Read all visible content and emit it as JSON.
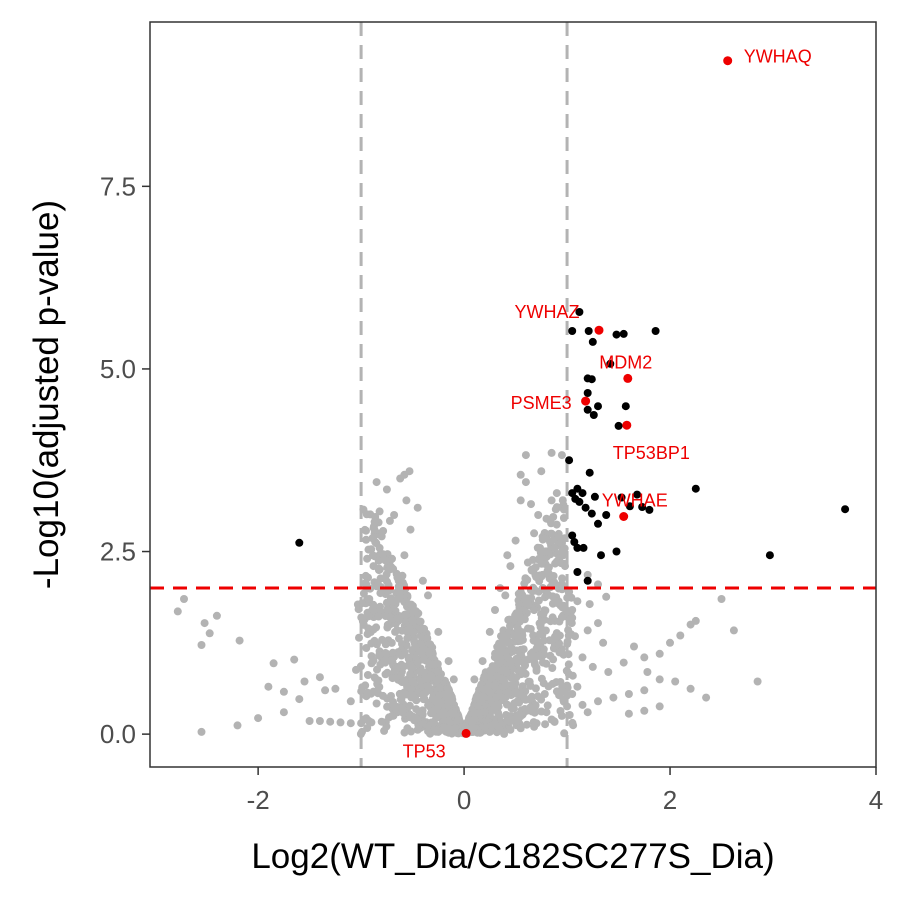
{
  "chart_data": {
    "type": "scatter",
    "title": "",
    "xlabel": "Log2(WT_Dia/C182SC277S_Dia)",
    "ylabel": "-Log10(adjusted p-value)",
    "xlim": [
      -3.05,
      4.0
    ],
    "ylim": [
      -0.45,
      9.75
    ],
    "x_ticks": [
      -2,
      0,
      2,
      4
    ],
    "y_ticks": [
      0.0,
      2.5,
      5.0,
      7.5
    ],
    "x_tick_labels": [
      "-2",
      "0",
      "2",
      "4"
    ],
    "y_tick_labels": [
      "0.0",
      "2.5",
      "5.0",
      "7.5"
    ],
    "grid": false,
    "legend": "none",
    "colors": {
      "not_significant": "#b3b3b3",
      "significant": "#000000",
      "highlighted": "#ee0000",
      "fold_change_threshold": "#b3b3b3",
      "pvalue_threshold": "#ee0000"
    },
    "thresholds": {
      "log2fc": [
        -1,
        1
      ],
      "neg_log10_padj": 2
    },
    "background_points": [
      [
        -2.78,
        1.68
      ],
      [
        -2.72,
        1.85
      ],
      [
        -2.55,
        1.22
      ],
      [
        -2.52,
        1.52
      ],
      [
        -2.47,
        1.38
      ],
      [
        -2.4,
        1.62
      ],
      [
        -2.18,
        1.28
      ],
      [
        -1.85,
        0.97
      ],
      [
        -1.65,
        1.02
      ],
      [
        -1.9,
        0.65
      ],
      [
        -1.75,
        0.58
      ],
      [
        -1.6,
        0.48
      ],
      [
        -1.55,
        0.72
      ],
      [
        -1.4,
        0.78
      ],
      [
        -1.35,
        0.6
      ],
      [
        -1.25,
        0.62
      ],
      [
        -1.1,
        0.45
      ],
      [
        -1.05,
        0.88
      ],
      [
        -0.95,
        0.52
      ],
      [
        -0.85,
        0.42
      ],
      [
        -1.5,
        0.18
      ],
      [
        -1.4,
        0.18
      ],
      [
        -1.3,
        0.17
      ],
      [
        -1.2,
        0.16
      ],
      [
        -1.1,
        0.15
      ],
      [
        -1.0,
        0.15
      ],
      [
        -0.9,
        0.16
      ],
      [
        -0.8,
        0.17
      ],
      [
        -2.55,
        0.03
      ],
      [
        -1.02,
        1.32
      ],
      [
        -0.95,
        2.05
      ],
      [
        -0.88,
        2.3
      ],
      [
        -0.82,
        2.55
      ],
      [
        -0.75,
        3.35
      ],
      [
        -0.72,
        2.92
      ],
      [
        -0.68,
        3.0
      ],
      [
        -0.62,
        3.5
      ],
      [
        -0.58,
        3.55
      ],
      [
        -0.53,
        3.6
      ],
      [
        -0.56,
        3.2
      ],
      [
        -0.52,
        2.8
      ],
      [
        -0.82,
        3.05
      ],
      [
        -0.58,
        2.45
      ],
      [
        -0.92,
        1.85
      ],
      [
        -0.85,
        3.45
      ],
      [
        -0.7,
        2.4
      ],
      [
        -0.75,
        1.8
      ],
      [
        -0.67,
        1.4
      ],
      [
        -0.45,
        3.1
      ],
      [
        -2.2,
        0.12
      ],
      [
        -2.0,
        0.22
      ],
      [
        -1.75,
        0.3
      ],
      [
        -0.6,
        0.35
      ],
      [
        -0.7,
        0.25
      ],
      [
        0.55,
        3.55
      ],
      [
        0.6,
        3.82
      ],
      [
        0.6,
        3.45
      ],
      [
        0.55,
        3.2
      ],
      [
        0.65,
        3.15
      ],
      [
        0.72,
        3.0
      ],
      [
        0.8,
        2.95
      ],
      [
        0.85,
        3.2
      ],
      [
        0.9,
        3.3
      ],
      [
        0.75,
        3.6
      ],
      [
        0.85,
        3.85
      ],
      [
        0.95,
        3.82
      ],
      [
        0.5,
        2.65
      ],
      [
        0.68,
        2.75
      ],
      [
        0.88,
        2.55
      ],
      [
        0.95,
        2.05
      ],
      [
        0.98,
        2.3
      ],
      [
        0.92,
        2.7
      ],
      [
        0.7,
        2.15
      ],
      [
        0.8,
        2.2
      ],
      [
        0.78,
        2.5
      ],
      [
        0.62,
        2.35
      ],
      [
        0.45,
        2.3
      ],
      [
        0.42,
        2.45
      ],
      [
        1.02,
        1.95
      ],
      [
        1.05,
        1.7
      ],
      [
        1.1,
        1.82
      ],
      [
        1.22,
        1.78
      ],
      [
        1.3,
        1.52
      ],
      [
        1.35,
        1.25
      ],
      [
        1.2,
        1.42
      ],
      [
        1.15,
        1.05
      ],
      [
        1.25,
        0.92
      ],
      [
        1.4,
        0.85
      ],
      [
        1.55,
        0.98
      ],
      [
        1.65,
        1.2
      ],
      [
        1.75,
        1.05
      ],
      [
        1.9,
        1.1
      ],
      [
        2.0,
        1.25
      ],
      [
        2.1,
        1.35
      ],
      [
        2.2,
        1.5
      ],
      [
        2.25,
        1.55
      ],
      [
        2.5,
        1.85
      ],
      [
        2.62,
        1.42
      ],
      [
        2.85,
        0.72
      ],
      [
        2.35,
        0.5
      ],
      [
        2.2,
        0.62
      ],
      [
        2.05,
        0.72
      ],
      [
        1.9,
        0.75
      ],
      [
        1.75,
        0.6
      ],
      [
        1.6,
        0.55
      ],
      [
        1.45,
        0.5
      ],
      [
        1.3,
        0.45
      ],
      [
        1.15,
        0.4
      ],
      [
        1.0,
        0.38
      ],
      [
        1.05,
        0.55
      ],
      [
        1.1,
        0.65
      ],
      [
        1.6,
        0.28
      ],
      [
        1.75,
        0.32
      ],
      [
        1.9,
        0.38
      ],
      [
        0.8,
        0.3
      ],
      [
        0.85,
        0.2
      ],
      [
        0.95,
        0.25
      ],
      [
        1.2,
        0.3
      ],
      [
        0.65,
        1.1
      ],
      [
        0.5,
        1.35
      ],
      [
        1.3,
        2.05
      ],
      [
        1.2,
        2.18
      ],
      [
        1.38,
        1.88
      ],
      [
        1.78,
        0.85
      ],
      [
        0.95,
        1.6
      ],
      [
        -0.55,
        0.08
      ],
      [
        -0.45,
        0.06
      ],
      [
        -0.35,
        0.04
      ],
      [
        -0.25,
        0.03
      ],
      [
        -0.15,
        0.02
      ],
      [
        0.15,
        0.02
      ],
      [
        0.25,
        0.03
      ],
      [
        0.35,
        0.05
      ],
      [
        0.45,
        0.06
      ],
      [
        0.55,
        0.08
      ],
      [
        0.68,
        0.1
      ],
      [
        -0.3,
        0.15
      ],
      [
        0.3,
        0.15
      ],
      [
        -0.2,
        0.3
      ],
      [
        0.2,
        0.3
      ],
      [
        -0.12,
        0.5
      ],
      [
        0.12,
        0.5
      ],
      [
        -0.1,
        0.75
      ],
      [
        0.1,
        0.75
      ],
      [
        -0.15,
        1.0
      ],
      [
        0.18,
        1.0
      ],
      [
        -0.25,
        1.4
      ],
      [
        0.25,
        1.4
      ],
      [
        0.3,
        1.7
      ],
      [
        0.35,
        2.0
      ],
      [
        0.4,
        1.9
      ],
      [
        -0.35,
        1.9
      ],
      [
        -0.4,
        2.1
      ]
    ],
    "significant_points": [
      [
        -1.6,
        2.62
      ],
      [
        1.12,
        5.78
      ],
      [
        1.05,
        5.52
      ],
      [
        1.21,
        5.52
      ],
      [
        1.25,
        5.37
      ],
      [
        1.48,
        5.47
      ],
      [
        1.55,
        5.48
      ],
      [
        1.86,
        5.52
      ],
      [
        1.42,
        5.07
      ],
      [
        1.2,
        4.87
      ],
      [
        1.24,
        4.86
      ],
      [
        1.2,
        4.67
      ],
      [
        1.2,
        4.44
      ],
      [
        1.26,
        4.37
      ],
      [
        1.3,
        4.49
      ],
      [
        1.5,
        4.22
      ],
      [
        1.57,
        4.49
      ],
      [
        1.02,
        3.75
      ],
      [
        1.05,
        3.3
      ],
      [
        1.08,
        3.22
      ],
      [
        1.1,
        3.36
      ],
      [
        1.12,
        3.18
      ],
      [
        1.15,
        3.3
      ],
      [
        1.18,
        3.1
      ],
      [
        1.22,
        3.58
      ],
      [
        1.27,
        3.25
      ],
      [
        1.24,
        3.02
      ],
      [
        1.3,
        2.88
      ],
      [
        1.38,
        3.0
      ],
      [
        1.53,
        3.24
      ],
      [
        1.61,
        3.12
      ],
      [
        1.68,
        3.28
      ],
      [
        1.73,
        3.11
      ],
      [
        1.8,
        3.07
      ],
      [
        2.25,
        3.36
      ],
      [
        1.05,
        2.72
      ],
      [
        1.07,
        2.63
      ],
      [
        1.1,
        2.55
      ],
      [
        1.16,
        2.55
      ],
      [
        1.33,
        2.45
      ],
      [
        1.48,
        2.5
      ],
      [
        1.1,
        2.22
      ],
      [
        1.2,
        2.1
      ],
      [
        3.7,
        3.08
      ],
      [
        2.97,
        2.45
      ]
    ],
    "highlighted_genes": [
      {
        "label": "YWHAQ",
        "x": 2.56,
        "y": 9.22
      },
      {
        "label": "YWHAZ",
        "x": 1.31,
        "y": 5.53
      },
      {
        "label": "MDM2",
        "x": 1.59,
        "y": 4.87
      },
      {
        "label": "PSME3",
        "x": 1.18,
        "y": 4.56
      },
      {
        "label": "TP53BP1",
        "x": 1.58,
        "y": 4.23
      },
      {
        "label": "YWHAE",
        "x": 1.55,
        "y": 2.98
      },
      {
        "label": "TP53",
        "x": 0.02,
        "y": 0.01
      }
    ]
  }
}
